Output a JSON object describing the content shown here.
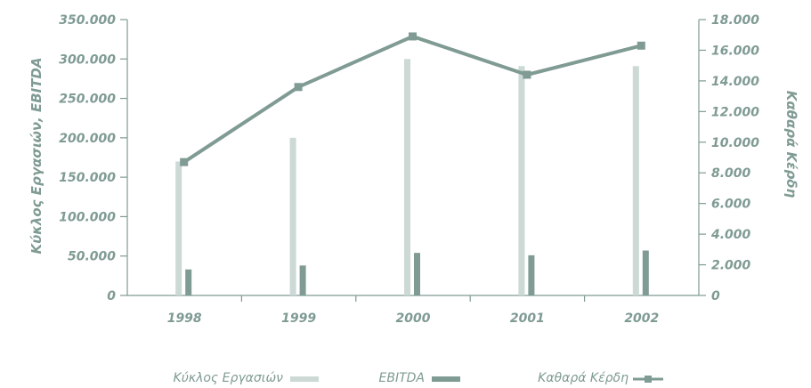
{
  "chart_data": {
    "type": "bar",
    "categories": [
      "1998",
      "1999",
      "2000",
      "2001",
      "2002"
    ],
    "y_left": {
      "label": "Κύκλος Εργασιών, EBITDA",
      "range": [
        0,
        350000
      ],
      "ticks": [
        "0",
        "50.000",
        "100.000",
        "150.000",
        "200.000",
        "250.000",
        "300.000",
        "350.000"
      ]
    },
    "y_right": {
      "label": "Καθαρά Κέρδη",
      "range": [
        0,
        18000
      ],
      "ticks": [
        "0",
        "2.000",
        "4.000",
        "6.000",
        "8.000",
        "10.000",
        "12.000",
        "14.000",
        "16.000",
        "18.000"
      ]
    },
    "series": [
      {
        "name": "Κύκλος Εργασιών",
        "type": "bar",
        "axis": "left",
        "values": [
          170000,
          200000,
          300000,
          291000,
          291000
        ],
        "color": "#ccd9d4"
      },
      {
        "name": "EBITDA",
        "type": "bar",
        "axis": "left",
        "values": [
          33000,
          38000,
          54000,
          51000,
          57000
        ],
        "color": "#7f9b93"
      },
      {
        "name": "Καθαρά Κέρδη",
        "type": "line",
        "axis": "right",
        "values": [
          8700,
          13600,
          16900,
          14400,
          16300
        ],
        "color": "#7f9b93"
      }
    ],
    "grid": false,
    "legend_position": "bottom"
  }
}
